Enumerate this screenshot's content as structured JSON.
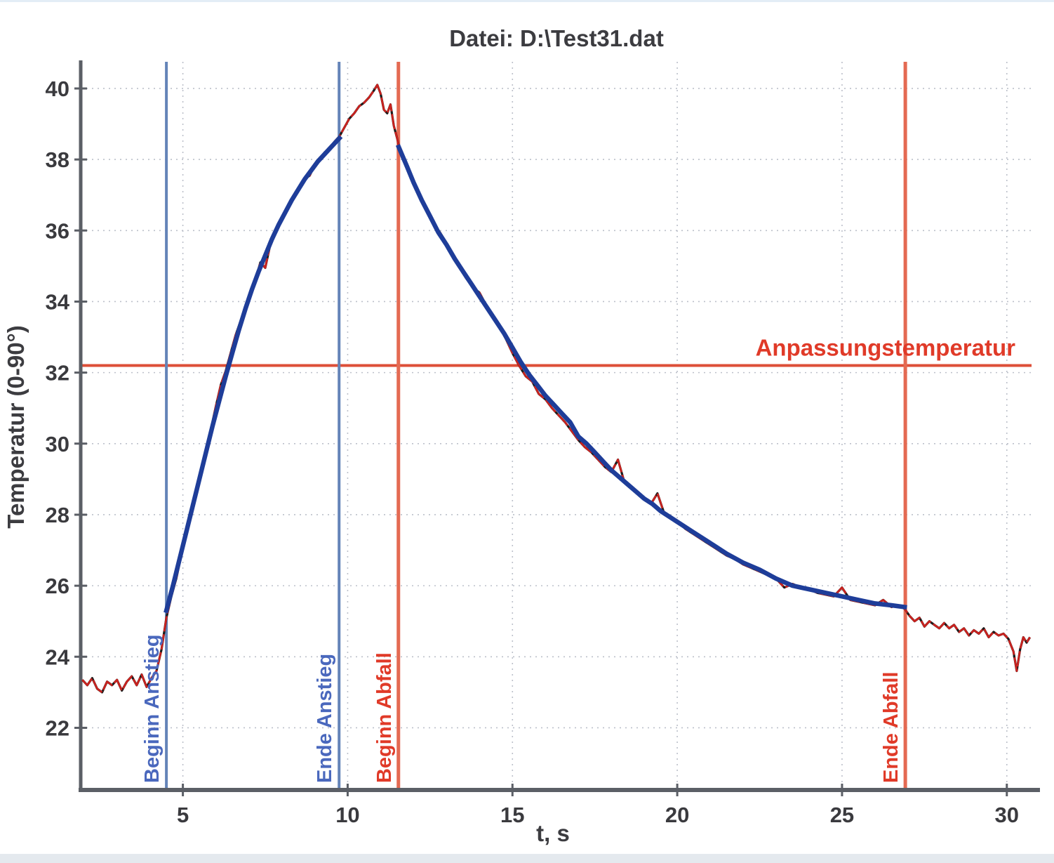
{
  "page": {
    "background": "#ffffff",
    "top_strip_color": "#e3edf6",
    "bottom_strip_color": "#e4e9ee"
  },
  "chart_data": {
    "type": "line",
    "title": "Datei: D:\\Test31.dat",
    "xlabel": "t, s",
    "ylabel": "Temperatur  (0-90°)",
    "xlim": [
      1.9,
      30.75
    ],
    "ylim": [
      20.25,
      40.75
    ],
    "xticks": [
      5,
      10,
      15,
      20,
      25,
      30
    ],
    "yticks": [
      22,
      24,
      26,
      28,
      30,
      32,
      34,
      36,
      38,
      40
    ],
    "grid": true,
    "legend_position": "none",
    "colors": {
      "axis": "#5b5f66",
      "tick_label": "#3a3a3e",
      "title": "#3c3c40",
      "grid": "#bcc0ca",
      "raw_line": "#c9221f",
      "raw_fleck": "#1c1c1c",
      "fit_line": "#1e3d99",
      "blue_marker_line": "#6484b8",
      "blue_marker_label": "#4a68bd",
      "red_marker_line": "#e46a52",
      "red_marker_label": "#e03a28",
      "hline": "#dd4f38"
    },
    "series": [
      {
        "name": "raw-measurement",
        "points": [
          [
            1.95,
            23.35
          ],
          [
            2.1,
            23.2
          ],
          [
            2.25,
            23.4
          ],
          [
            2.4,
            23.1
          ],
          [
            2.55,
            23.0
          ],
          [
            2.7,
            23.3
          ],
          [
            2.85,
            23.2
          ],
          [
            3.0,
            23.35
          ],
          [
            3.15,
            23.05
          ],
          [
            3.3,
            23.3
          ],
          [
            3.45,
            23.45
          ],
          [
            3.6,
            23.2
          ],
          [
            3.75,
            23.5
          ],
          [
            3.9,
            23.15
          ],
          [
            4.05,
            23.4
          ],
          [
            4.2,
            23.6
          ],
          [
            4.35,
            24.2
          ],
          [
            4.5,
            25.1
          ],
          [
            4.65,
            25.7
          ],
          [
            4.8,
            26.2
          ],
          [
            4.95,
            26.85
          ],
          [
            5.1,
            27.55
          ],
          [
            5.25,
            28.1
          ],
          [
            5.4,
            28.65
          ],
          [
            5.55,
            29.25
          ],
          [
            5.7,
            29.85
          ],
          [
            5.85,
            30.4
          ],
          [
            6.0,
            31.05
          ],
          [
            6.15,
            31.65
          ],
          [
            6.3,
            32.05
          ],
          [
            6.45,
            32.55
          ],
          [
            6.6,
            33.05
          ],
          [
            6.75,
            33.45
          ],
          [
            6.9,
            33.85
          ],
          [
            7.05,
            34.25
          ],
          [
            7.2,
            34.6
          ],
          [
            7.35,
            35.1
          ],
          [
            7.5,
            34.95
          ],
          [
            7.65,
            35.6
          ],
          [
            7.8,
            35.9
          ],
          [
            7.95,
            36.25
          ],
          [
            8.1,
            36.45
          ],
          [
            8.25,
            36.75
          ],
          [
            8.4,
            37.0
          ],
          [
            8.55,
            37.2
          ],
          [
            8.7,
            37.45
          ],
          [
            8.85,
            37.55
          ],
          [
            9.0,
            37.85
          ],
          [
            9.15,
            38.0
          ],
          [
            9.3,
            38.2
          ],
          [
            9.45,
            38.3
          ],
          [
            9.6,
            38.5
          ],
          [
            9.75,
            38.65
          ],
          [
            9.9,
            38.9
          ],
          [
            10.05,
            39.15
          ],
          [
            10.2,
            39.3
          ],
          [
            10.35,
            39.5
          ],
          [
            10.5,
            39.6
          ],
          [
            10.65,
            39.75
          ],
          [
            10.8,
            39.95
          ],
          [
            10.9,
            40.1
          ],
          [
            11.0,
            39.85
          ],
          [
            11.1,
            39.4
          ],
          [
            11.2,
            39.3
          ],
          [
            11.3,
            39.55
          ],
          [
            11.4,
            38.95
          ],
          [
            11.5,
            38.6
          ],
          [
            11.55,
            38.4
          ],
          [
            11.7,
            38.05
          ],
          [
            11.85,
            37.7
          ],
          [
            12.0,
            37.35
          ],
          [
            12.2,
            36.95
          ],
          [
            12.4,
            36.6
          ],
          [
            12.6,
            36.2
          ],
          [
            12.8,
            35.95
          ],
          [
            13.0,
            35.65
          ],
          [
            13.2,
            35.3
          ],
          [
            13.4,
            34.95
          ],
          [
            13.6,
            34.65
          ],
          [
            13.8,
            34.4
          ],
          [
            14.0,
            34.25
          ],
          [
            14.2,
            33.9
          ],
          [
            14.4,
            33.6
          ],
          [
            14.6,
            33.3
          ],
          [
            14.8,
            32.95
          ],
          [
            15.0,
            32.55
          ],
          [
            15.2,
            32.2
          ],
          [
            15.4,
            31.9
          ],
          [
            15.6,
            31.75
          ],
          [
            15.8,
            31.4
          ],
          [
            16.0,
            31.25
          ],
          [
            16.2,
            31.0
          ],
          [
            16.4,
            30.8
          ],
          [
            16.6,
            30.6
          ],
          [
            16.8,
            30.35
          ],
          [
            17.0,
            30.1
          ],
          [
            17.2,
            29.9
          ],
          [
            17.4,
            29.75
          ],
          [
            17.6,
            29.55
          ],
          [
            17.8,
            29.35
          ],
          [
            18.0,
            29.2
          ],
          [
            18.2,
            29.55
          ],
          [
            18.4,
            28.9
          ],
          [
            18.6,
            28.75
          ],
          [
            18.8,
            28.6
          ],
          [
            19.0,
            28.45
          ],
          [
            19.2,
            28.3
          ],
          [
            19.4,
            28.6
          ],
          [
            19.6,
            28.05
          ],
          [
            19.8,
            27.9
          ],
          [
            20.0,
            27.8
          ],
          [
            20.25,
            27.6
          ],
          [
            20.5,
            27.45
          ],
          [
            20.75,
            27.3
          ],
          [
            21.0,
            27.15
          ],
          [
            21.25,
            27.0
          ],
          [
            21.5,
            26.85
          ],
          [
            21.75,
            26.75
          ],
          [
            22.0,
            26.6
          ],
          [
            22.25,
            26.5
          ],
          [
            22.5,
            26.4
          ],
          [
            22.75,
            26.3
          ],
          [
            23.0,
            26.2
          ],
          [
            23.25,
            25.95
          ],
          [
            23.5,
            26.05
          ],
          [
            23.75,
            25.95
          ],
          [
            24.0,
            25.9
          ],
          [
            24.25,
            25.8
          ],
          [
            24.5,
            25.75
          ],
          [
            24.75,
            25.7
          ],
          [
            25.0,
            25.95
          ],
          [
            25.25,
            25.6
          ],
          [
            25.5,
            25.55
          ],
          [
            25.75,
            25.5
          ],
          [
            26.0,
            25.45
          ],
          [
            26.25,
            25.6
          ],
          [
            26.5,
            25.4
          ],
          [
            26.7,
            25.45
          ],
          [
            26.9,
            25.35
          ],
          [
            27.05,
            25.15
          ],
          [
            27.2,
            25.0
          ],
          [
            27.35,
            25.1
          ],
          [
            27.5,
            24.85
          ],
          [
            27.65,
            25.0
          ],
          [
            27.8,
            24.9
          ],
          [
            27.95,
            24.8
          ],
          [
            28.1,
            24.95
          ],
          [
            28.25,
            24.8
          ],
          [
            28.4,
            24.9
          ],
          [
            28.55,
            24.7
          ],
          [
            28.7,
            24.8
          ],
          [
            28.85,
            24.6
          ],
          [
            29.0,
            24.75
          ],
          [
            29.15,
            24.65
          ],
          [
            29.3,
            24.8
          ],
          [
            29.45,
            24.55
          ],
          [
            29.6,
            24.7
          ],
          [
            29.75,
            24.6
          ],
          [
            29.9,
            24.65
          ],
          [
            30.05,
            24.5
          ],
          [
            30.2,
            24.15
          ],
          [
            30.3,
            23.6
          ],
          [
            30.4,
            24.2
          ],
          [
            30.5,
            24.55
          ],
          [
            30.6,
            24.4
          ],
          [
            30.7,
            24.55
          ]
        ]
      },
      {
        "name": "fit-rise",
        "points": [
          [
            4.5,
            25.3
          ],
          [
            4.7,
            26.0
          ],
          [
            4.9,
            26.75
          ],
          [
            5.1,
            27.5
          ],
          [
            5.3,
            28.25
          ],
          [
            5.5,
            29.0
          ],
          [
            5.7,
            29.75
          ],
          [
            5.9,
            30.5
          ],
          [
            6.1,
            31.2
          ],
          [
            6.3,
            31.9
          ],
          [
            6.5,
            32.55
          ],
          [
            6.7,
            33.2
          ],
          [
            6.9,
            33.8
          ],
          [
            7.1,
            34.35
          ],
          [
            7.3,
            34.85
          ],
          [
            7.5,
            35.3
          ],
          [
            7.7,
            35.75
          ],
          [
            7.9,
            36.15
          ],
          [
            8.1,
            36.5
          ],
          [
            8.3,
            36.85
          ],
          [
            8.5,
            37.15
          ],
          [
            8.7,
            37.45
          ],
          [
            8.9,
            37.7
          ],
          [
            9.1,
            37.95
          ],
          [
            9.3,
            38.15
          ],
          [
            9.5,
            38.35
          ],
          [
            9.75,
            38.6
          ]
        ]
      },
      {
        "name": "fit-decay",
        "points": [
          [
            11.55,
            38.35
          ],
          [
            11.8,
            37.8
          ],
          [
            12.0,
            37.35
          ],
          [
            12.25,
            36.85
          ],
          [
            12.5,
            36.4
          ],
          [
            12.75,
            35.95
          ],
          [
            13.0,
            35.6
          ],
          [
            13.25,
            35.2
          ],
          [
            13.5,
            34.85
          ],
          [
            13.75,
            34.5
          ],
          [
            14.0,
            34.15
          ],
          [
            14.25,
            33.8
          ],
          [
            14.5,
            33.45
          ],
          [
            14.75,
            33.1
          ],
          [
            15.0,
            32.7
          ],
          [
            15.25,
            32.3
          ],
          [
            15.5,
            31.95
          ],
          [
            15.75,
            31.65
          ],
          [
            16.0,
            31.35
          ],
          [
            16.25,
            31.1
          ],
          [
            16.5,
            30.85
          ],
          [
            16.75,
            30.6
          ],
          [
            17.0,
            30.2
          ],
          [
            17.25,
            30.0
          ],
          [
            17.5,
            29.75
          ],
          [
            17.75,
            29.5
          ],
          [
            18.0,
            29.25
          ],
          [
            18.25,
            29.05
          ],
          [
            18.5,
            28.85
          ],
          [
            18.75,
            28.65
          ],
          [
            19.0,
            28.45
          ],
          [
            19.25,
            28.3
          ],
          [
            19.5,
            28.1
          ],
          [
            19.75,
            27.95
          ],
          [
            20.0,
            27.8
          ],
          [
            20.5,
            27.5
          ],
          [
            21.0,
            27.2
          ],
          [
            21.5,
            26.9
          ],
          [
            22.0,
            26.65
          ],
          [
            22.5,
            26.45
          ],
          [
            23.0,
            26.2
          ],
          [
            23.5,
            26.0
          ],
          [
            24.0,
            25.9
          ],
          [
            24.5,
            25.8
          ],
          [
            25.0,
            25.7
          ],
          [
            25.5,
            25.6
          ],
          [
            26.0,
            25.5
          ],
          [
            26.5,
            25.45
          ],
          [
            26.9,
            25.4
          ]
        ]
      }
    ],
    "markers": {
      "vlines": [
        {
          "label": "Beginn Anstieg",
          "t": 4.5,
          "kind": "blue"
        },
        {
          "label": "Ende Anstieg",
          "t": 9.74,
          "kind": "blue"
        },
        {
          "label": "Beginn Abfall",
          "t": 11.54,
          "kind": "red"
        },
        {
          "label": "Ende Abfall",
          "t": 26.92,
          "kind": "red"
        }
      ],
      "hline": {
        "label": "Anpassungstemperatur",
        "T": 32.2
      }
    }
  }
}
